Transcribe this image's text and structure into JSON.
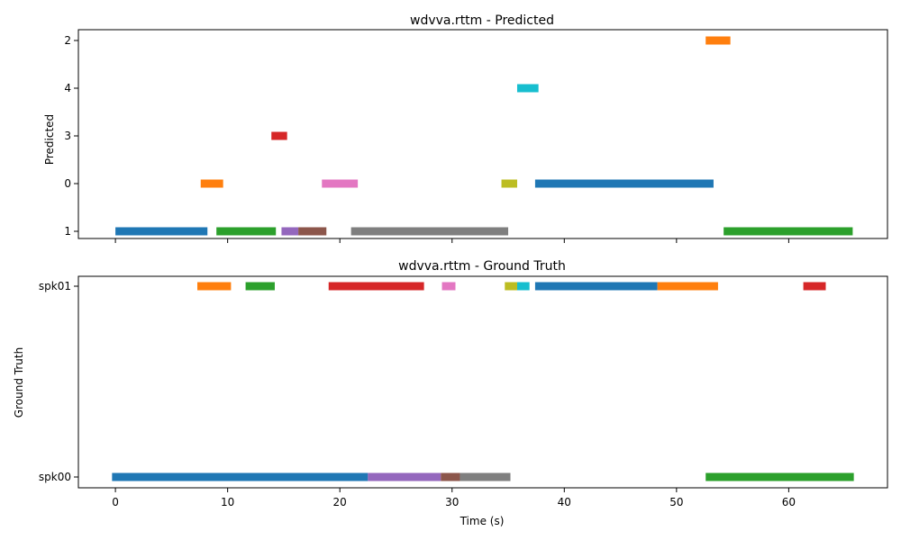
{
  "chart_data": [
    {
      "type": "timeline",
      "title": "wdvva.rttm - Predicted",
      "ylabel": "Predicted",
      "xlabel": "",
      "xlim": [
        -3.3,
        68.8
      ],
      "xticks": [
        0,
        10,
        20,
        30,
        40,
        50,
        60
      ],
      "show_xtick_labels": false,
      "rows": [
        "2",
        "4",
        "3",
        "0",
        "1"
      ],
      "segments": [
        {
          "row": "1",
          "start": 0.0,
          "end": 8.2,
          "color": "#1f77b4"
        },
        {
          "row": "1",
          "start": 9.0,
          "end": 14.3,
          "color": "#2ca02c"
        },
        {
          "row": "1",
          "start": 14.8,
          "end": 16.3,
          "color": "#9467bd"
        },
        {
          "row": "1",
          "start": 16.3,
          "end": 18.8,
          "color": "#8c564b"
        },
        {
          "row": "1",
          "start": 21.0,
          "end": 35.0,
          "color": "#7f7f7f"
        },
        {
          "row": "1",
          "start": 54.2,
          "end": 65.7,
          "color": "#2ca02c"
        },
        {
          "row": "0",
          "start": 7.6,
          "end": 9.6,
          "color": "#ff7f0e"
        },
        {
          "row": "0",
          "start": 18.4,
          "end": 21.6,
          "color": "#e377c2"
        },
        {
          "row": "0",
          "start": 34.4,
          "end": 35.8,
          "color": "#bcbd22"
        },
        {
          "row": "0",
          "start": 37.4,
          "end": 53.3,
          "color": "#1f77b4"
        },
        {
          "row": "3",
          "start": 13.9,
          "end": 15.3,
          "color": "#d62728"
        },
        {
          "row": "4",
          "start": 35.8,
          "end": 37.7,
          "color": "#17becf"
        },
        {
          "row": "2",
          "start": 52.6,
          "end": 54.8,
          "color": "#ff7f0e"
        }
      ]
    },
    {
      "type": "timeline",
      "title": "wdvva.rttm - Ground Truth",
      "ylabel": "Ground Truth",
      "xlabel": "Time (s)",
      "xlim": [
        -3.3,
        68.8
      ],
      "xticks": [
        0,
        10,
        20,
        30,
        40,
        50,
        60
      ],
      "show_xtick_labels": true,
      "rows": [
        "spk01",
        "spk00"
      ],
      "segments": [
        {
          "row": "spk01",
          "start": 7.3,
          "end": 10.3,
          "color": "#ff7f0e"
        },
        {
          "row": "spk01",
          "start": 11.6,
          "end": 14.2,
          "color": "#2ca02c"
        },
        {
          "row": "spk01",
          "start": 19.0,
          "end": 27.5,
          "color": "#d62728"
        },
        {
          "row": "spk01",
          "start": 29.1,
          "end": 30.3,
          "color": "#e377c2"
        },
        {
          "row": "spk01",
          "start": 34.7,
          "end": 35.8,
          "color": "#bcbd22"
        },
        {
          "row": "spk01",
          "start": 35.8,
          "end": 36.9,
          "color": "#17becf"
        },
        {
          "row": "spk01",
          "start": 37.4,
          "end": 48.3,
          "color": "#1f77b4"
        },
        {
          "row": "spk01",
          "start": 48.3,
          "end": 53.7,
          "color": "#ff7f0e"
        },
        {
          "row": "spk01",
          "start": 61.3,
          "end": 63.3,
          "color": "#d62728"
        },
        {
          "row": "spk00",
          "start": -0.3,
          "end": 22.5,
          "color": "#1f77b4"
        },
        {
          "row": "spk00",
          "start": 22.5,
          "end": 29.0,
          "color": "#9467bd"
        },
        {
          "row": "spk00",
          "start": 29.0,
          "end": 30.7,
          "color": "#8c564b"
        },
        {
          "row": "spk00",
          "start": 30.7,
          "end": 35.2,
          "color": "#7f7f7f"
        },
        {
          "row": "spk00",
          "start": 52.6,
          "end": 65.8,
          "color": "#2ca02c"
        }
      ]
    }
  ]
}
